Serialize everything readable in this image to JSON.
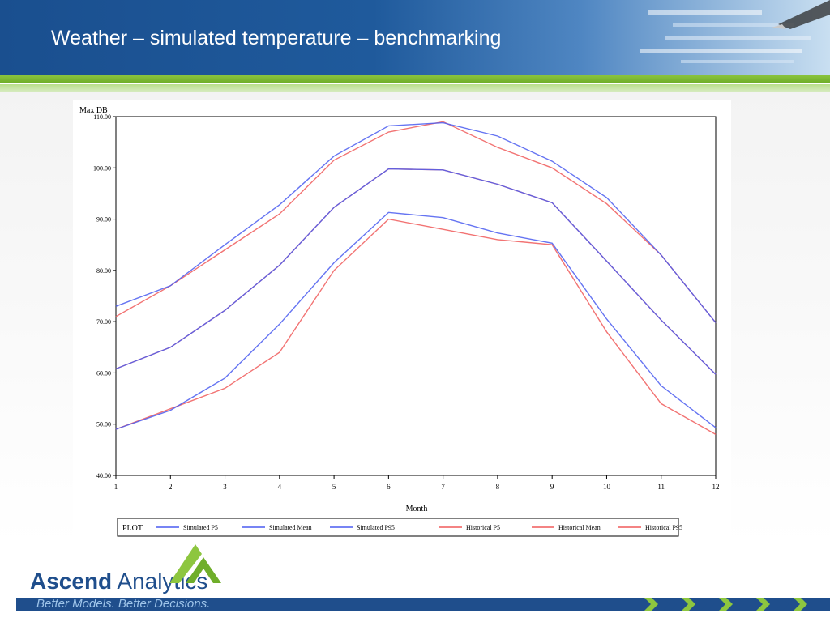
{
  "slide": {
    "title": "Weather – simulated temperature – benchmarking"
  },
  "branding": {
    "logo_word1": "Ascend",
    "logo_word2": " Analytics",
    "tagline": "Better Models. Better Decisions."
  },
  "colors": {
    "simulated": "#4a5cf0",
    "historical": "#f05a5a",
    "header_blue": "#1f5a9c",
    "brand_green": "#8dc63f"
  },
  "chart_data": {
    "type": "line",
    "title": "",
    "xlabel": "Month",
    "ylabel": "Max DB",
    "x": [
      1,
      2,
      3,
      4,
      5,
      6,
      7,
      8,
      9,
      10,
      11,
      12
    ],
    "xlim": [
      1,
      12
    ],
    "ylim": [
      40,
      110
    ],
    "yticks": [
      "40.00",
      "50.00",
      "60.00",
      "70.00",
      "80.00",
      "90.00",
      "100.00",
      "110.00"
    ],
    "ytick_values": [
      40,
      50,
      60,
      70,
      80,
      90,
      100,
      110
    ],
    "xticks": [
      "1",
      "2",
      "3",
      "4",
      "5",
      "6",
      "7",
      "8",
      "9",
      "10",
      "11",
      "12"
    ],
    "grid": false,
    "legend_title": "PLOT",
    "legend_position": "bottom",
    "series": [
      {
        "name": "Simulated P5",
        "group": "simulated",
        "values": [
          49.0,
          52.7,
          59.0,
          69.5,
          81.5,
          91.3,
          90.3,
          87.3,
          85.3,
          70.5,
          57.5,
          49.3
        ]
      },
      {
        "name": "Simulated Mean",
        "group": "simulated",
        "values": [
          60.8,
          65.0,
          72.2,
          81.0,
          92.3,
          99.8,
          99.6,
          96.8,
          93.2,
          81.8,
          70.3,
          59.7
        ]
      },
      {
        "name": "Simulated P95",
        "group": "simulated",
        "values": [
          73.0,
          77.0,
          85.0,
          92.8,
          102.3,
          108.2,
          108.8,
          106.2,
          101.3,
          94.2,
          83.0,
          69.8
        ]
      },
      {
        "name": "Historical P5",
        "group": "historical",
        "values": [
          49.0,
          53.0,
          57.0,
          64.0,
          80.0,
          90.0,
          88.0,
          86.0,
          85.0,
          68.0,
          54.0,
          48.0
        ]
      },
      {
        "name": "Historical Mean",
        "group": "historical",
        "values": [
          60.8,
          65.0,
          72.2,
          81.0,
          92.3,
          99.8,
          99.6,
          96.8,
          93.2,
          81.8,
          70.3,
          59.7
        ]
      },
      {
        "name": "Historical P95",
        "group": "historical",
        "values": [
          71.0,
          77.0,
          84.0,
          91.0,
          101.5,
          107.0,
          109.0,
          104.0,
          100.0,
          93.0,
          83.0,
          69.8
        ]
      }
    ]
  }
}
